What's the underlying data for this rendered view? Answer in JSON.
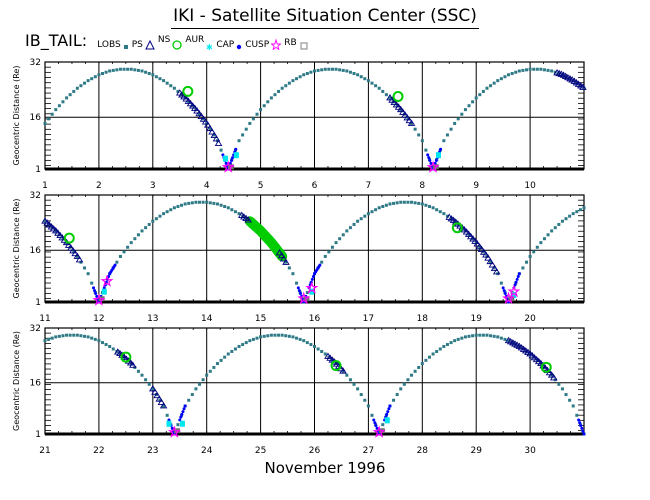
{
  "title": "IKI - Satellite Situation Center (SSC)",
  "legend": {
    "satellite": "IB_TAIL:",
    "items": [
      {
        "label": "LOBS",
        "symbol": "square-small",
        "color": "#2e7a86"
      },
      {
        "label": "PS",
        "symbol": "triangle",
        "color": "#000080"
      },
      {
        "label": "NS",
        "symbol": "circle",
        "color": "#00cc00"
      },
      {
        "label": "AUR",
        "symbol": "star",
        "color": "#00e5ee"
      },
      {
        "label": "CAP",
        "symbol": "dot",
        "color": "#0000ff"
      },
      {
        "label": "CUSP",
        "symbol": "star",
        "color": "#ff00ff"
      },
      {
        "label": "RB",
        "symbol": "square-open",
        "color": "#808080"
      }
    ]
  },
  "xlabel": "November    1996",
  "chart_data": [
    {
      "type": "scatter",
      "ylabel": "Geocentric Distance (Re)",
      "xlim": [
        1,
        11
      ],
      "ylim": [
        1,
        32
      ],
      "xticks": [
        "1",
        "2",
        "3",
        "4",
        "5",
        "6",
        "7",
        "8",
        "9",
        "10"
      ],
      "yticks": [
        "1",
        "16",
        "32"
      ],
      "grid": true,
      "x_start": 1.0,
      "x_step": 0.2,
      "distance": [
        14.2,
        18.2,
        21.6,
        24.4,
        26.6,
        28.3,
        29.4,
        29.9,
        29.9,
        29.4,
        28.3,
        26.6,
        24.4,
        21.6,
        18.2,
        14.2,
        9.2,
        1,
        9.2,
        14.2,
        18.2,
        21.6,
        24.4,
        26.6,
        28.3,
        29.4,
        29.9,
        29.9,
        29.4,
        28.3,
        26.6,
        24.4,
        21.6,
        18.2,
        14.2,
        9.2,
        1,
        9.2,
        14.2,
        18.2,
        21.6,
        24.4,
        26.6,
        28.3,
        29.4,
        29.9,
        29.9,
        29.4,
        28.3,
        26.6,
        24.4
      ],
      "ns_segments": [
        [
          3.5,
          4.25
        ],
        [
          7.4,
          7.8
        ],
        [
          10.5,
          11.0
        ]
      ],
      "aur": [
        [
          3.65,
          23.5
        ],
        [
          7.55,
          22
        ]
      ],
      "cusp_segments": [
        [
          4.3,
          4.55
        ],
        [
          8.1,
          8.35
        ]
      ],
      "cap": [
        [
          4.35,
          4
        ],
        [
          4.55,
          5
        ],
        [
          8.3,
          5
        ]
      ],
      "rb": [
        [
          4.4,
          1.5
        ],
        [
          8.2,
          1.5
        ]
      ],
      "lobs": [
        [
          4.45,
          1.2
        ],
        [
          8.25,
          1.2
        ]
      ]
    },
    {
      "type": "scatter",
      "ylabel": "Geocentric Distance (Re)",
      "xlim": [
        11,
        21
      ],
      "ylim": [
        1,
        32
      ],
      "xticks": [
        "11",
        "12",
        "13",
        "14",
        "15",
        "16",
        "17",
        "18",
        "19",
        "20"
      ],
      "yticks": [
        "1",
        "16",
        "32"
      ],
      "grid": true,
      "x_start": 11.0,
      "x_step": 0.2,
      "distance": [
        24.4,
        21.6,
        18.2,
        14.2,
        9.2,
        1,
        9.2,
        14.2,
        18.2,
        21.6,
        24.4,
        26.6,
        28.3,
        29.4,
        29.9,
        29.9,
        29.4,
        28.3,
        26.6,
        24.4,
        21.6,
        18.2,
        14.2,
        9.2,
        1,
        9.2,
        14.2,
        18.2,
        21.6,
        24.4,
        26.6,
        28.3,
        29.4,
        29.9,
        29.9,
        29.4,
        28.3,
        26.6,
        24.4,
        21.6,
        18.2,
        14.2,
        9.2,
        1,
        9.2,
        14.2,
        18.2,
        21.6,
        24.4,
        26.6,
        28.3
      ],
      "ns_segments": [
        [
          11.0,
          11.65
        ],
        [
          14.65,
          14.8
        ],
        [
          15.35,
          15.5
        ],
        [
          18.5,
          19.4
        ]
      ],
      "aur": [
        [
          11.45,
          19.5
        ],
        [
          18.65,
          22.5
        ]
      ],
      "aur_band": [
        14.8,
        15.4
      ],
      "cusp_segments": [
        [
          11.9,
          12.05
        ],
        [
          12.1,
          12.3
        ],
        [
          15.7,
          15.85
        ],
        [
          15.9,
          16.1
        ],
        [
          19.5,
          19.6
        ],
        [
          19.7,
          19.8
        ]
      ],
      "cap": [
        [
          12.1,
          4
        ],
        [
          15.95,
          4
        ],
        [
          19.7,
          3
        ]
      ],
      "rb": [
        [
          12.0,
          1.5
        ],
        [
          12.15,
          7
        ],
        [
          15.8,
          2
        ],
        [
          15.95,
          5
        ],
        [
          19.6,
          2
        ],
        [
          19.7,
          4
        ]
      ],
      "lobs": [
        [
          12.05,
          1.5
        ],
        [
          15.85,
          1.5
        ],
        [
          19.65,
          1.5
        ]
      ]
    },
    {
      "type": "scatter",
      "ylabel": "Geocentric Distance (Re)",
      "xlim": [
        21,
        31
      ],
      "ylim": [
        1,
        32
      ],
      "xticks": [
        "21",
        "22",
        "23",
        "24",
        "25",
        "26",
        "27",
        "28",
        "29",
        "30"
      ],
      "yticks": [
        "1",
        "16",
        "32"
      ],
      "grid": true,
      "x_start": 21.0,
      "x_step": 0.2,
      "distance": [
        28.3,
        29.4,
        29.9,
        29.9,
        29.4,
        28.3,
        26.6,
        24.4,
        21.6,
        18.2,
        14.2,
        9.2,
        1,
        9.2,
        14.2,
        18.2,
        21.6,
        24.4,
        26.6,
        28.3,
        29.4,
        29.9,
        29.9,
        29.4,
        28.3,
        26.6,
        24.4,
        21.6,
        18.2,
        14.2,
        9.2,
        1,
        9.2,
        14.2,
        18.2,
        21.6,
        24.4,
        26.6,
        28.3,
        29.4,
        29.9,
        29.9,
        29.4,
        28.3,
        26.6,
        24.4,
        21.6,
        18.2,
        14.2,
        9.2,
        1
      ],
      "ns_segments": [
        [
          22.35,
          22.65
        ],
        [
          23.0,
          23.2
        ],
        [
          26.25,
          26.55
        ],
        [
          29.6,
          30.45
        ]
      ],
      "aur": [
        [
          22.5,
          23.5
        ],
        [
          26.4,
          21
        ],
        [
          30.3,
          20.5
        ]
      ],
      "cusp_segments": [
        [
          23.3,
          23.4
        ],
        [
          23.5,
          23.6
        ],
        [
          27.1,
          27.2
        ],
        [
          27.3,
          27.4
        ],
        [
          30.9,
          31.0
        ]
      ],
      "cap": [
        [
          23.3,
          4
        ],
        [
          23.55,
          4
        ],
        [
          27.35,
          5
        ]
      ],
      "rb": [
        [
          23.4,
          1.5
        ],
        [
          27.2,
          1.5
        ]
      ],
      "lobs": [
        [
          23.45,
          1.5
        ],
        [
          27.25,
          1.5
        ]
      ]
    }
  ]
}
